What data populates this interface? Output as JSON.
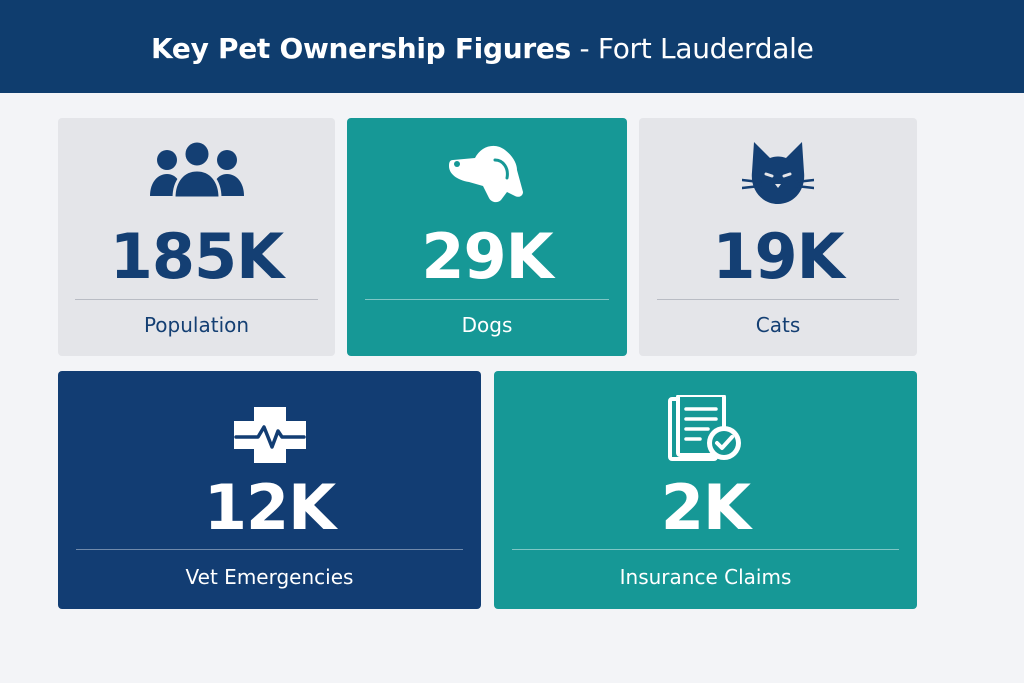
{
  "header": {
    "title_bold": "Key Pet Ownership Figures",
    "title_light": " - Fort Lauderdale"
  },
  "cards": [
    {
      "value": "185K",
      "label": "Population",
      "icon": "people-group-icon"
    },
    {
      "value": "29K",
      "label": "Dogs",
      "icon": "dog-head-icon"
    },
    {
      "value": "19K",
      "label": "Cats",
      "icon": "cat-head-icon"
    },
    {
      "value": "12K",
      "label": "Vet Emergencies",
      "icon": "medical-cross-icon"
    },
    {
      "value": "2K",
      "label": "Insurance Claims",
      "icon": "document-check-icon"
    }
  ],
  "colors": {
    "navy": "#0f3d6e",
    "teal": "#169896",
    "gray": "#e4e5e9",
    "background": "#f3f4f7"
  }
}
